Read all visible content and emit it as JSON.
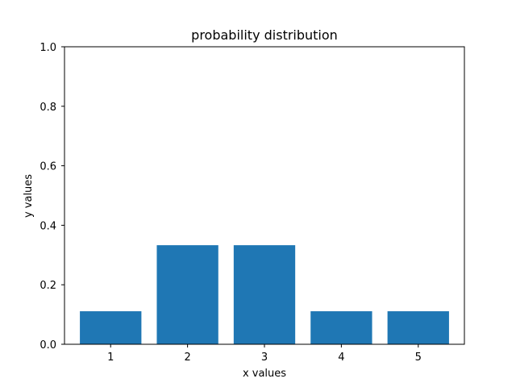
{
  "chart_data": {
    "type": "bar",
    "title": "probability distribution",
    "xlabel": "x values",
    "ylabel": "y values",
    "categories": [
      "1",
      "2",
      "3",
      "4",
      "5"
    ],
    "values": [
      0.111,
      0.333,
      0.333,
      0.111,
      0.111
    ],
    "ylim": [
      0,
      1.0
    ],
    "yticks": [
      "0.0",
      "0.2",
      "0.4",
      "0.6",
      "0.8",
      "1.0"
    ],
    "bar_color": "#1f77b4",
    "grid": false,
    "legend": "none"
  }
}
